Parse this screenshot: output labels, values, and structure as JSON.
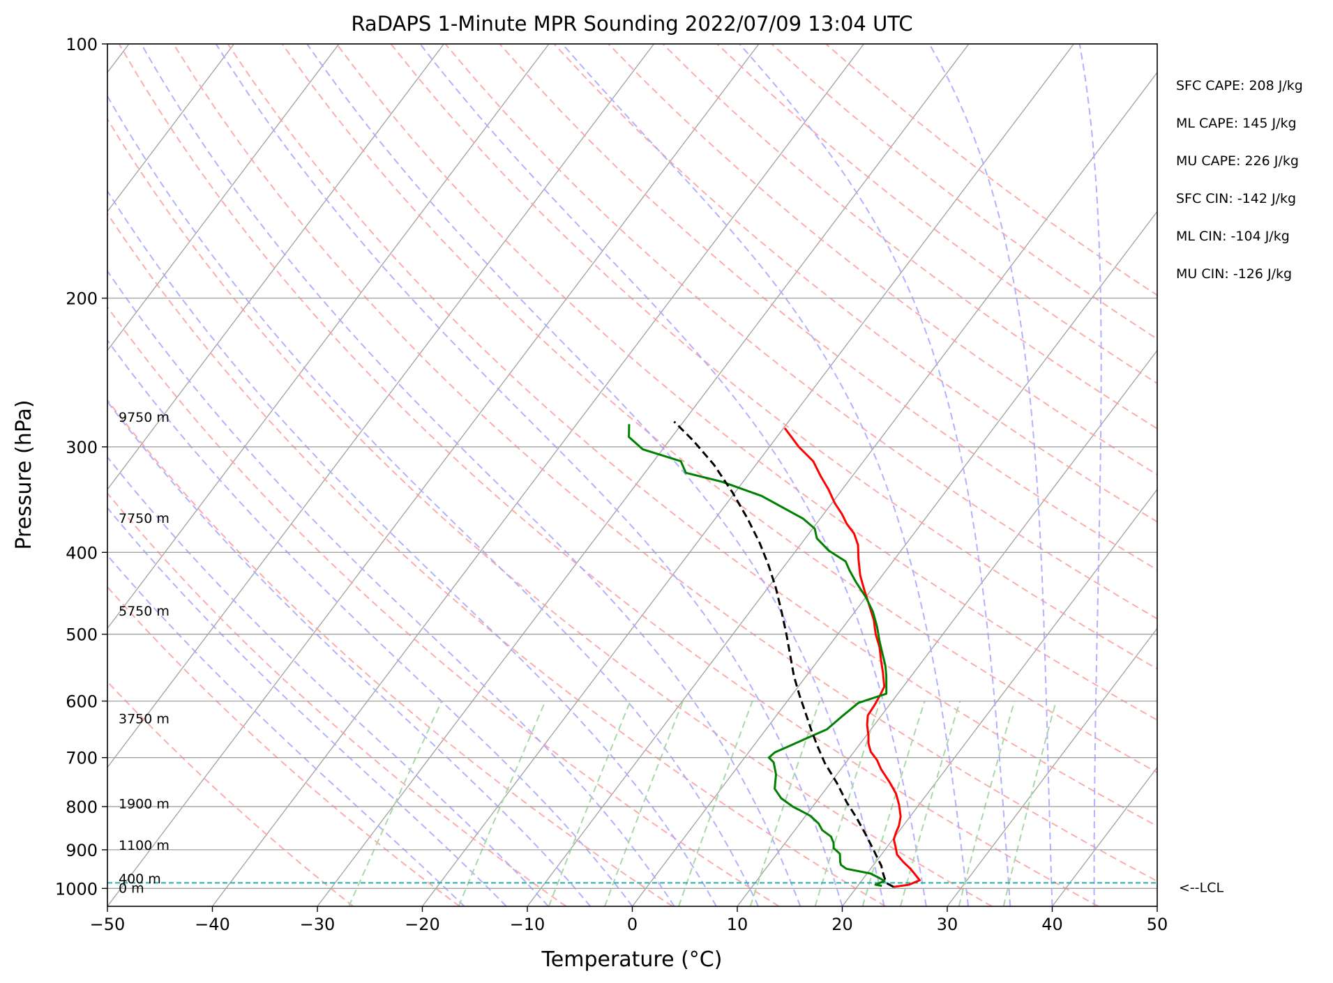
{
  "chart_data": {
    "type": "line",
    "chart_kind": "skew-T log-P sounding",
    "title": "RaDAPS 1-Minute MPR Sounding 2022/07/09 13:04 UTC",
    "xlabel": "Temperature (°C)",
    "ylabel": "Pressure (hPa)",
    "xlim": [
      -50,
      50
    ],
    "ylim": [
      1050,
      100
    ],
    "y_scale": "log",
    "x_ticks": [
      "−50",
      "−40",
      "−30",
      "−20",
      "−10",
      "0",
      "10",
      "20",
      "30",
      "40",
      "50"
    ],
    "y_ticks": [
      "100",
      "200",
      "300",
      "400",
      "500",
      "600",
      "700",
      "800",
      "900",
      "1000"
    ],
    "grid": true,
    "height_labels": [
      {
        "p": 1000,
        "text": "0 m"
      },
      {
        "p": 975,
        "text": "400 m"
      },
      {
        "p": 890,
        "text": "1100 m"
      },
      {
        "p": 795,
        "text": "1900 m"
      },
      {
        "p": 630,
        "text": "3750 m"
      },
      {
        "p": 470,
        "text": "5750 m"
      },
      {
        "p": 365,
        "text": "7750 m"
      },
      {
        "p": 277,
        "text": "9750 m"
      }
    ],
    "stats": [
      "SFC CAPE: 208 J/kg",
      "ML CAPE: 145 J/kg",
      "MU CAPE: 226 J/kg",
      "SFC CIN: -142 J/kg",
      "ML CIN: -104 J/kg",
      "MU CIN: -126 J/kg"
    ],
    "lcl": {
      "p": 985,
      "label": "<--LCL"
    },
    "series": [
      {
        "role": "temperature",
        "color": "#ff0000",
        "points": [
          [
            23.5,
            996
          ],
          [
            24.8,
            990
          ],
          [
            25.5,
            978
          ],
          [
            24.5,
            960
          ],
          [
            23.8,
            948
          ],
          [
            22.6,
            930
          ],
          [
            21.5,
            912
          ],
          [
            20.8,
            893
          ],
          [
            20.1,
            875
          ],
          [
            19.8,
            858
          ],
          [
            19.6,
            843
          ],
          [
            19.1,
            822
          ],
          [
            18.1,
            796
          ],
          [
            17.0,
            772
          ],
          [
            15.6,
            749
          ],
          [
            13.8,
            722
          ],
          [
            12.8,
            705
          ],
          [
            11.6,
            689
          ],
          [
            10.8,
            674
          ],
          [
            10.2,
            659
          ],
          [
            9.3,
            640
          ],
          [
            8.7,
            624
          ],
          [
            8.6,
            607
          ],
          [
            8.4,
            590
          ],
          [
            8.2,
            577
          ],
          [
            7.1,
            556
          ],
          [
            6.0,
            537
          ],
          [
            4.9,
            518
          ],
          [
            3.6,
            500
          ],
          [
            2.4,
            481
          ],
          [
            0.9,
            462
          ],
          [
            -0.6,
            444
          ],
          [
            -2.1,
            426
          ],
          [
            -3.4,
            408
          ],
          [
            -4.5,
            392
          ],
          [
            -5.7,
            380
          ],
          [
            -7.1,
            370
          ],
          [
            -8.3,
            360
          ],
          [
            -9.7,
            350
          ],
          [
            -11.3,
            337
          ],
          [
            -13.0,
            325
          ],
          [
            -14.8,
            312
          ],
          [
            -17.2,
            300
          ],
          [
            -19.9,
            285
          ]
        ]
      },
      {
        "role": "dewpoint",
        "color": "#008000",
        "points": [
          [
            22.3,
            993
          ],
          [
            21.6,
            990
          ],
          [
            22.2,
            980
          ],
          [
            21.5,
            972
          ],
          [
            20.3,
            960
          ],
          [
            17.7,
            948
          ],
          [
            16.9,
            938
          ],
          [
            16.6,
            930
          ],
          [
            16.0,
            910
          ],
          [
            15.0,
            896
          ],
          [
            14.6,
            883
          ],
          [
            13.9,
            868
          ],
          [
            12.6,
            853
          ],
          [
            11.8,
            838
          ],
          [
            10.4,
            820
          ],
          [
            8.1,
            800
          ],
          [
            6.4,
            782
          ],
          [
            5.1,
            762
          ],
          [
            4.2,
            733
          ],
          [
            3.1,
            709
          ],
          [
            2.3,
            700
          ],
          [
            2.5,
            690
          ],
          [
            3.3,
            680
          ],
          [
            4.6,
            663
          ],
          [
            5.8,
            648
          ],
          [
            6.3,
            626
          ],
          [
            6.9,
            603
          ],
          [
            8.9,
            588
          ],
          [
            8.4,
            577
          ],
          [
            7.6,
            560
          ],
          [
            6.8,
            545
          ],
          [
            5.7,
            528
          ],
          [
            4.5,
            510
          ],
          [
            3.2,
            490
          ],
          [
            1.7,
            470
          ],
          [
            0.0,
            452
          ],
          [
            -2.0,
            434
          ],
          [
            -3.5,
            420
          ],
          [
            -4.5,
            410
          ],
          [
            -6.9,
            398
          ],
          [
            -8.9,
            385
          ],
          [
            -9.8,
            375
          ],
          [
            -11.6,
            365
          ],
          [
            -14.1,
            355
          ],
          [
            -17.2,
            343
          ],
          [
            -22.0,
            330
          ],
          [
            -26.1,
            322
          ],
          [
            -27.4,
            312
          ],
          [
            -31.9,
            302
          ],
          [
            -34.1,
            292
          ],
          [
            -35.0,
            282
          ]
        ]
      },
      {
        "role": "parcel",
        "color": "#000000",
        "points": [
          [
            23.5,
            996
          ],
          [
            22.5,
            985
          ],
          [
            21.6,
            962
          ],
          [
            20.8,
            940
          ],
          [
            18.9,
            900
          ],
          [
            17.0,
            862
          ],
          [
            15.0,
            825
          ],
          [
            12.9,
            790
          ],
          [
            10.6,
            750
          ],
          [
            8.0,
            710
          ],
          [
            6.2,
            680
          ],
          [
            4.4,
            650
          ],
          [
            2.6,
            620
          ],
          [
            0.7,
            590
          ],
          [
            -1.2,
            560
          ],
          [
            -3.0,
            530
          ],
          [
            -4.9,
            500
          ],
          [
            -7.0,
            470
          ],
          [
            -9.3,
            440
          ],
          [
            -11.5,
            415
          ],
          [
            -14.0,
            390
          ],
          [
            -16.9,
            365
          ],
          [
            -20.2,
            340
          ],
          [
            -24.0,
            315
          ],
          [
            -27.7,
            295
          ],
          [
            -30.9,
            280
          ]
        ]
      }
    ],
    "background_lines": {
      "dry_adiabat_color": "#ff9c9c",
      "moist_adiabat_color": "#a8a8ff",
      "mixing_ratio_color": "#a8d8a8",
      "isotherm_color": "#a0a0a0",
      "lcl_line_color": "#20b2aa"
    }
  }
}
